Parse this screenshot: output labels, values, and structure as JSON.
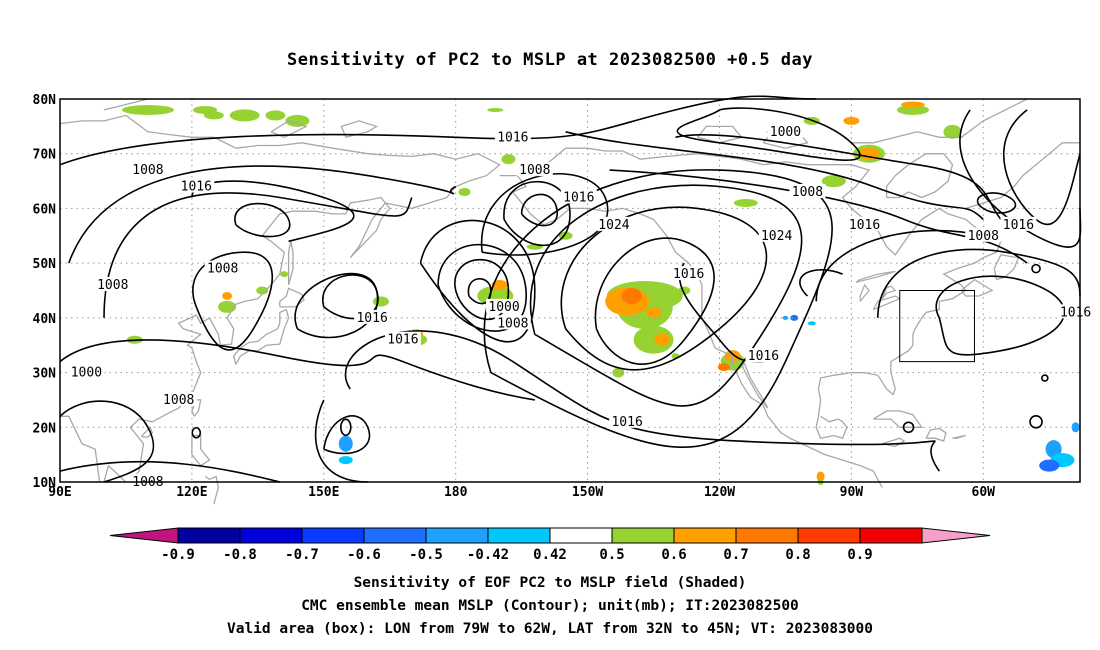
{
  "title": "Sensitivity of PC2 to MSLP at 2023082500 +0.5 day",
  "map": {
    "lat_labels": [
      "80N",
      "70N",
      "60N",
      "50N",
      "40N",
      "30N",
      "20N",
      "10N"
    ],
    "lon_labels": [
      "90E",
      "120E",
      "150E",
      "180",
      "150W",
      "120W",
      "90W",
      "60W"
    ],
    "lat_values": [
      80,
      70,
      60,
      50,
      40,
      30,
      20,
      10
    ],
    "lon_values": [
      90,
      120,
      150,
      180,
      210,
      240,
      270,
      300
    ],
    "extent": {
      "lon_min": 90,
      "lon_max": 322,
      "lat_min": 10,
      "lat_max": 80
    },
    "valid_box": {
      "lon_west": -79,
      "lon_east": -62,
      "lat_south": 32,
      "lat_north": 45
    },
    "contour_color": "#000000",
    "coast_color": "#a8a8a8",
    "grid_style": "dotted",
    "contour_labels": [
      {
        "text": "1016",
        "lon": 193,
        "lat": 73
      },
      {
        "text": "1008",
        "lon": 110,
        "lat": 67
      },
      {
        "text": "1016",
        "lon": 121,
        "lat": 64
      },
      {
        "text": "1008",
        "lon": 198,
        "lat": 67
      },
      {
        "text": "1000",
        "lon": 255,
        "lat": 74
      },
      {
        "text": "1008",
        "lon": 260,
        "lat": 63
      },
      {
        "text": "1016",
        "lon": 208,
        "lat": 62
      },
      {
        "text": "1024",
        "lon": 216,
        "lat": 57
      },
      {
        "text": "1016",
        "lon": 273,
        "lat": 57
      },
      {
        "text": "1024",
        "lon": 253,
        "lat": 55
      },
      {
        "text": "1008",
        "lon": 300,
        "lat": 55
      },
      {
        "text": "1016",
        "lon": 308,
        "lat": 57
      },
      {
        "text": "1008",
        "lon": 127,
        "lat": 49
      },
      {
        "text": "1008",
        "lon": 102,
        "lat": 46
      },
      {
        "text": "1016",
        "lon": 233,
        "lat": 48
      },
      {
        "text": "1016",
        "lon": 321,
        "lat": 41
      },
      {
        "text": "1000",
        "lon": 191,
        "lat": 42
      },
      {
        "text": "1008",
        "lon": 193,
        "lat": 39
      },
      {
        "text": "1016",
        "lon": 161,
        "lat": 40
      },
      {
        "text": "1016",
        "lon": 168,
        "lat": 36
      },
      {
        "text": "1016",
        "lon": 250,
        "lat": 33
      },
      {
        "text": "1000",
        "lon": 96,
        "lat": 30
      },
      {
        "text": "1008",
        "lon": 117,
        "lat": 25
      },
      {
        "text": "1016",
        "lon": 219,
        "lat": 21
      },
      {
        "text": "1008",
        "lon": 110,
        "lat": 10
      }
    ]
  },
  "colorbar": {
    "labels": [
      "-0.9",
      "-0.8",
      "-0.7",
      "-0.6",
      "-0.5",
      "-0.42",
      "0.42",
      "0.5",
      "0.6",
      "0.7",
      "0.8",
      "0.9"
    ],
    "under_color": "#c0147e",
    "over_color": "#f5a0c8",
    "colors": [
      "#0000a0",
      "#0000dc",
      "#0a3cff",
      "#1e6eff",
      "#1ea0ff",
      "#00c8ff",
      "#ffffff",
      "#96d232",
      "#ffa000",
      "#ff7800",
      "#ff3c00",
      "#f00000"
    ]
  },
  "captions": {
    "line1": "Sensitivity of EOF PC2 to MSLP field (Shaded)",
    "line2": "CMC ensemble mean MSLP (Contour); unit(mb); IT:2023082500",
    "line3": "Valid area (box): LON from 79W to 62W, LAT from 32N to 45N; VT: 2023083000"
  }
}
